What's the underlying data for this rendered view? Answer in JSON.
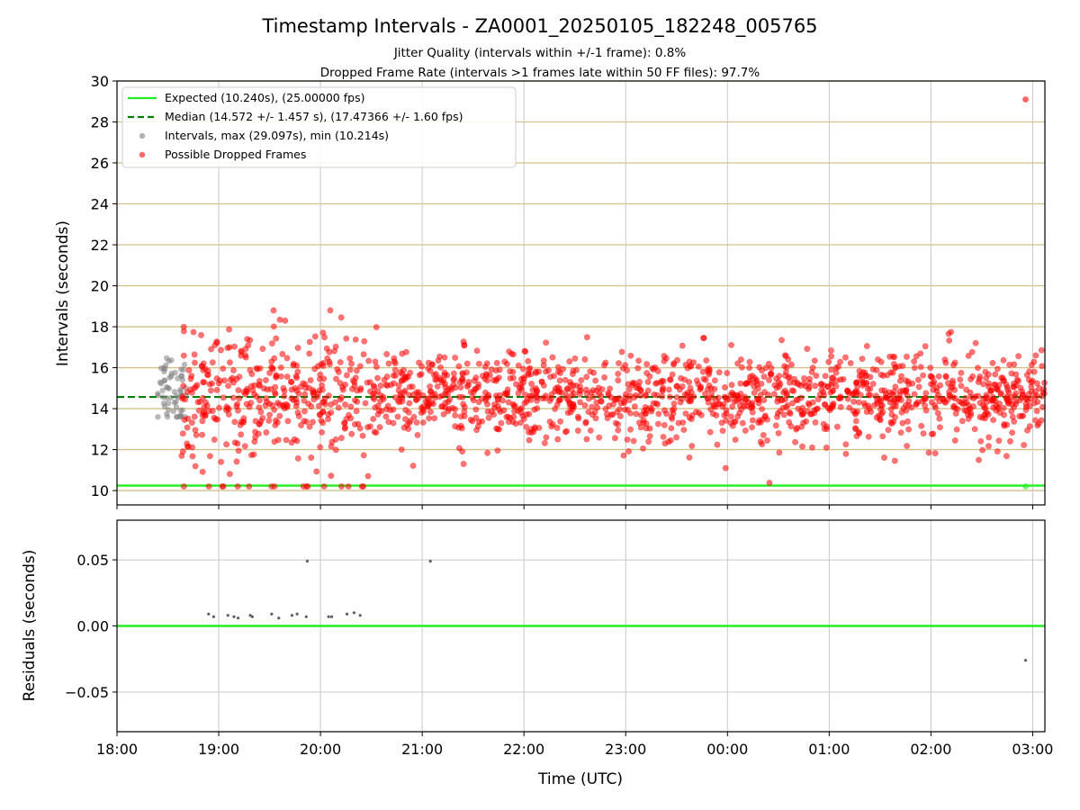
{
  "chart_data": [
    {
      "type": "scatter",
      "title": "Timestamp Intervals - ZA0001_20250105_182248_005765",
      "subtitle_lines": [
        "Jitter Quality (intervals within +/-1 frame): 0.8%",
        "Dropped Frame Rate (intervals >1 frames late within 50 FF files): 97.7%"
      ],
      "xlabel": "",
      "ylabel": "Intervals (seconds)",
      "x_unit": "hours since 18:00 UTC",
      "xlim": [
        0,
        9.12
      ],
      "ylim": [
        9.3,
        30
      ],
      "yticks": [
        10,
        12,
        14,
        16,
        18,
        20,
        22,
        24,
        26,
        28,
        30
      ],
      "y_grid_color": "#d4c08a",
      "x_grid_color": "#c8c8c8",
      "legend_position": "top-left",
      "expected": {
        "name": "Expected (10.240s), (25.00000 fps)",
        "value": 10.24,
        "color": "#22ee22"
      },
      "median": {
        "name": "Median (14.572 +/- 1.457 s), (17.47366 +/- 1.60 fps)",
        "value": 14.572,
        "std": 1.457,
        "color": "#008000"
      },
      "intervals": {
        "name": "Intervals, max (29.097s), min (10.214s)",
        "color": "#808080",
        "max": 29.097,
        "min": 10.214,
        "approx_count": 60,
        "x_range": [
          0.4,
          0.68
        ],
        "y_range": [
          13.6,
          17.4
        ]
      },
      "dropped": {
        "name": "Possible Dropped Frames",
        "color": "#ff0000",
        "approx_count": 1750,
        "x_range": [
          0.62,
          9.12
        ],
        "y_range": [
          10.2,
          18.8
        ],
        "center": 14.6
      },
      "outliers": [
        {
          "x": 8.93,
          "y": 29.1,
          "series": "dropped"
        },
        {
          "x": 8.93,
          "y": 10.2,
          "series": "expected-match"
        }
      ]
    },
    {
      "type": "scatter",
      "xlabel": "Time (UTC)",
      "ylabel": "Residuals (seconds)",
      "xlim": [
        0,
        9.12
      ],
      "ylim": [
        -0.08,
        0.08
      ],
      "yticks": [
        -0.05,
        0.0,
        0.05
      ],
      "ytick_labels": [
        "−0.05",
        "0.00",
        "0.05"
      ],
      "xtick_values": [
        0,
        1,
        2,
        3,
        4,
        5,
        6,
        7,
        8,
        9
      ],
      "xtick_labels": [
        "18:00",
        "19:00",
        "20:00",
        "21:00",
        "22:00",
        "23:00",
        "00:00",
        "01:00",
        "02:00",
        "03:00"
      ],
      "zero_line_color": "#22ee22",
      "point_color": "#606060",
      "points": [
        {
          "x": 0.9,
          "y": 0.009
        },
        {
          "x": 0.95,
          "y": 0.007
        },
        {
          "x": 1.09,
          "y": 0.008
        },
        {
          "x": 1.15,
          "y": 0.007
        },
        {
          "x": 1.19,
          "y": 0.006
        },
        {
          "x": 1.31,
          "y": 0.008
        },
        {
          "x": 1.33,
          "y": 0.007
        },
        {
          "x": 1.52,
          "y": 0.009
        },
        {
          "x": 1.59,
          "y": 0.006
        },
        {
          "x": 1.72,
          "y": 0.008
        },
        {
          "x": 1.77,
          "y": 0.009
        },
        {
          "x": 1.87,
          "y": 0.049
        },
        {
          "x": 1.86,
          "y": 0.007
        },
        {
          "x": 2.08,
          "y": 0.007
        },
        {
          "x": 2.11,
          "y": 0.007
        },
        {
          "x": 2.26,
          "y": 0.009
        },
        {
          "x": 2.33,
          "y": 0.01
        },
        {
          "x": 2.39,
          "y": 0.008
        },
        {
          "x": 3.08,
          "y": 0.049
        },
        {
          "x": 8.93,
          "y": -0.026
        }
      ]
    }
  ]
}
